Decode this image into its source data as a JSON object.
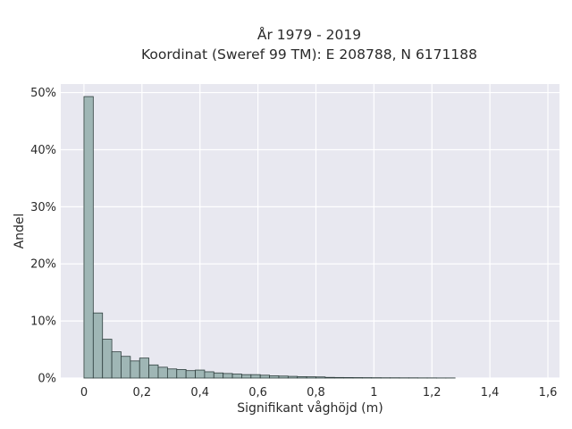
{
  "chart_data": {
    "type": "bar",
    "title": "År 1979 - 2019",
    "subtitle": "Koordinat (Sweref 99 TM): E 208788, N 6171188",
    "xlabel": "Signifikant våghöjd (m)",
    "ylabel": "Andel",
    "xlim": [
      -0.08,
      1.64
    ],
    "ylim": [
      0,
      51.5
    ],
    "x_ticks": [
      0,
      0.2,
      0.4,
      0.6,
      0.8,
      1.0,
      1.2,
      1.4,
      1.6
    ],
    "x_tick_labels": [
      "0",
      "0,2",
      "0,4",
      "0,6",
      "0,8",
      "1",
      "1,2",
      "1,4",
      "1,6"
    ],
    "y_ticks": [
      0,
      10,
      20,
      30,
      40,
      50
    ],
    "y_tick_labels": [
      "0%",
      "10%",
      "20%",
      "30%",
      "40%",
      "50%"
    ],
    "grid": true,
    "bin_width": 0.032,
    "bins_start": [
      0,
      0.032,
      0.064,
      0.096,
      0.128,
      0.16,
      0.192,
      0.224,
      0.256,
      0.288,
      0.32,
      0.352,
      0.384,
      0.416,
      0.448,
      0.48,
      0.512,
      0.544,
      0.576,
      0.608,
      0.64,
      0.672,
      0.704,
      0.736,
      0.768,
      0.8,
      0.832,
      0.864,
      0.896,
      0.928,
      0.96,
      0.992,
      1.024,
      1.056,
      1.088,
      1.12,
      1.152,
      1.184,
      1.216,
      1.248
    ],
    "values": [
      49.3,
      11.4,
      6.8,
      4.6,
      3.8,
      3.0,
      3.5,
      2.3,
      1.9,
      1.6,
      1.5,
      1.3,
      1.4,
      1.1,
      0.9,
      0.8,
      0.7,
      0.6,
      0.6,
      0.5,
      0.4,
      0.35,
      0.3,
      0.25,
      0.22,
      0.2,
      0.12,
      0.1,
      0.09,
      0.08,
      0.07,
      0.06,
      0.05,
      0.05,
      0.04,
      0.04,
      0.03,
      0.03,
      0.02,
      0.02
    ],
    "colors": {
      "plot_bg": "#e8e8f0",
      "grid": "#ffffff",
      "bar_fill": "#9fb6b5",
      "bar_edge": "#2f3f3e"
    }
  }
}
